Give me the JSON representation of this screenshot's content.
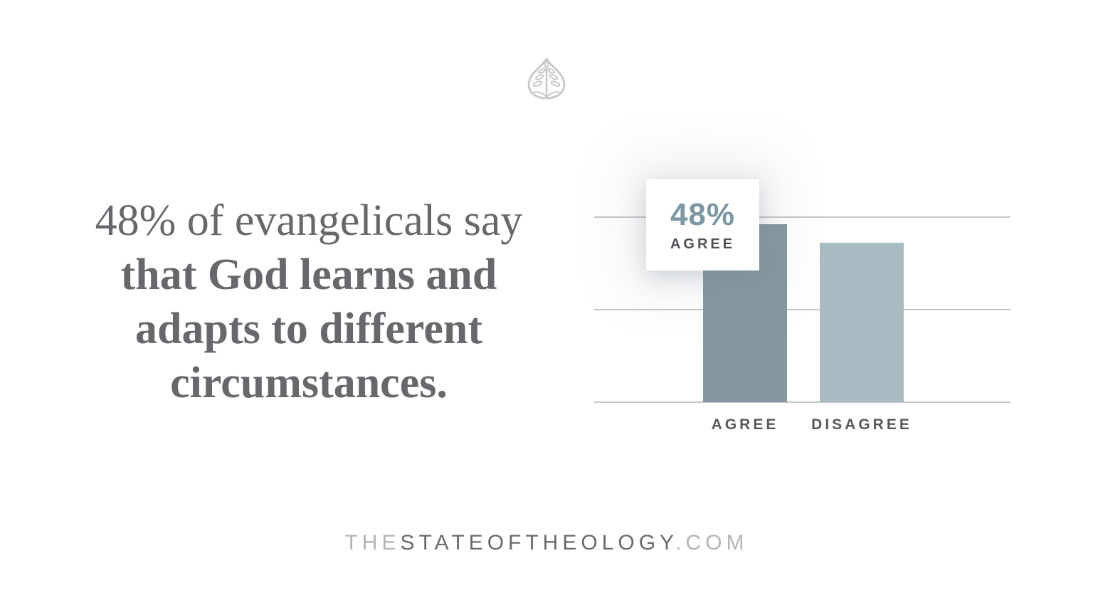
{
  "logo": {
    "name": "ligonier-tree-shield-logo"
  },
  "statement": {
    "line1": "48% of evangelicals say",
    "line2": "that God learns and",
    "line3": "adapts to different",
    "line4": "circumstances."
  },
  "callout": {
    "value": "48%",
    "label": "AGREE"
  },
  "chart_data": {
    "type": "bar",
    "categories": [
      "AGREE",
      "DISAGREE"
    ],
    "values": [
      48,
      43
    ],
    "title": "",
    "xlabel": "",
    "ylabel": "",
    "ylim": [
      0,
      50
    ],
    "gridlines_percent": [
      0,
      25,
      50
    ],
    "legend": "none",
    "annotation": {
      "value": "48%",
      "label": "AGREE",
      "target_bar": "AGREE"
    }
  },
  "footer": {
    "prefix": "THE",
    "middle": "STATEOFTHEOLOGY",
    "suffix": ".COM"
  },
  "colors": {
    "page_bg": "#ffffff",
    "statement_text": "#66686b",
    "bar_agree": "#8597a0",
    "bar_disagree": "#a9bcc2",
    "gridline": "#c6c8c9",
    "axis_label": "#58595d",
    "callout_value": "#7d97a4",
    "callout_label": "#4f5257",
    "footer_light": "#b3b4b6",
    "footer_dark": "#696a6d",
    "logo": "#c9cacb"
  }
}
